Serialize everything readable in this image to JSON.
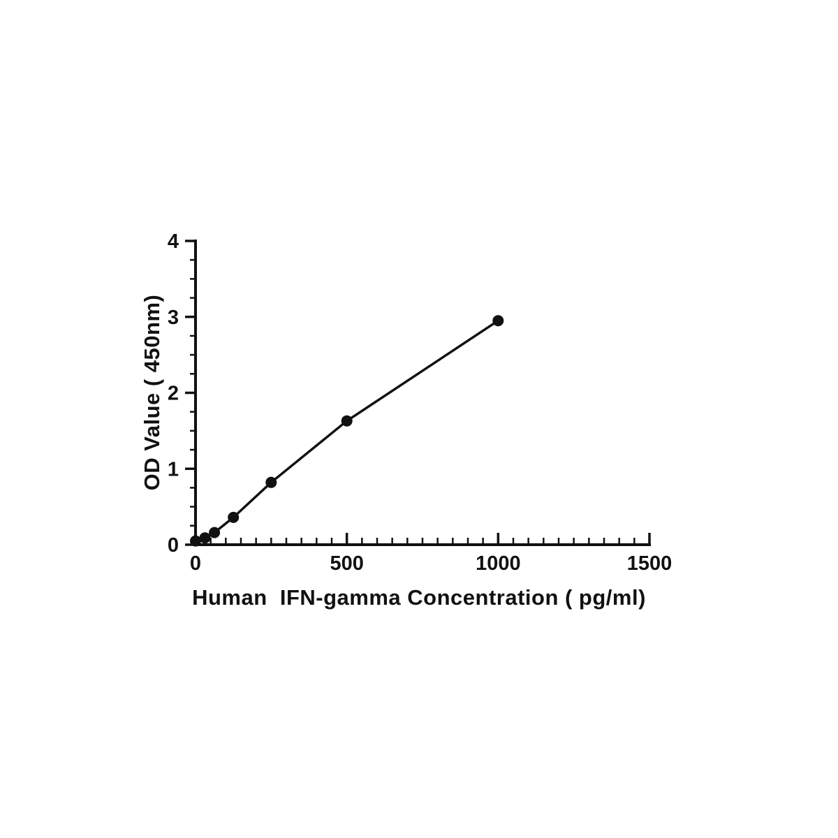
{
  "page": {
    "background": "#ffffff"
  },
  "chart_data": {
    "type": "line",
    "title": "",
    "xlabel": "Human  IFN-gamma Concentration ( pg/ml)",
    "ylabel": "OD Value ( 450nm)",
    "x": [
      0,
      31.25,
      62.5,
      125,
      250,
      500,
      1000
    ],
    "series": [
      {
        "name": "OD Value (450nm)",
        "values": [
          0.05,
          0.09,
          0.16,
          0.36,
          0.82,
          1.63,
          2.95
        ]
      }
    ],
    "xlim": [
      0,
      1500
    ],
    "ylim": [
      0,
      4
    ],
    "x_major_ticks": [
      0,
      500,
      1000,
      1500
    ],
    "x_minor_step": 50,
    "y_major_ticks": [
      0,
      1,
      2,
      3,
      4
    ],
    "y_minor_step": 0.25,
    "grid": false,
    "legend": "none",
    "marker": "filled-circle",
    "line_color": "#111111",
    "marker_color": "#111111",
    "axis_color": "#111111"
  }
}
